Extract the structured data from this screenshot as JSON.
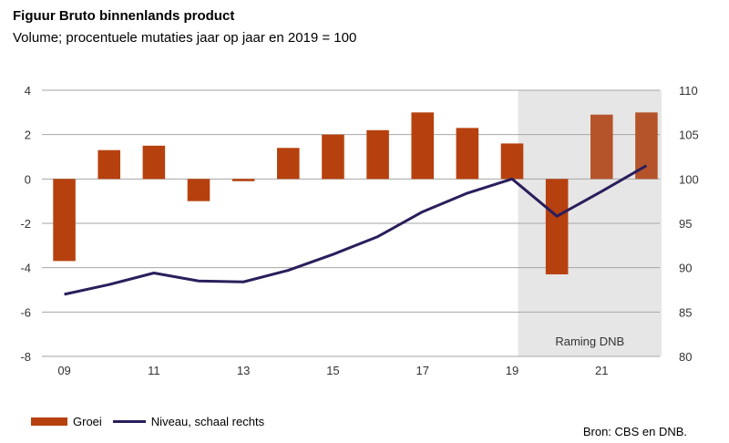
{
  "title": "Figuur Bruto binnenlands product",
  "subtitle": "Volume; procentuele mutaties jaar op jaar en 2019 = 100",
  "source": "Bron: CBS en DNB.",
  "colors": {
    "bar": "#B7410E",
    "bar_forecast": "#B5542A",
    "line": "#2B1E5C",
    "shade": "#E6E6E6",
    "grid": "#A6A6A6"
  },
  "chart_data": {
    "type": "bar+line",
    "x": [
      "09",
      "10",
      "11",
      "12",
      "13",
      "14",
      "15",
      "16",
      "17",
      "18",
      "19",
      "20",
      "21",
      "22"
    ],
    "x_tick_labels": [
      "09",
      "11",
      "13",
      "15",
      "17",
      "19",
      "21"
    ],
    "series": [
      {
        "name": "Groei",
        "type": "bar",
        "axis": "left",
        "values": [
          -3.7,
          1.3,
          1.5,
          -1.0,
          -0.1,
          1.4,
          2.0,
          2.2,
          3.0,
          2.3,
          1.6,
          -4.3,
          2.9,
          3.0
        ]
      },
      {
        "name": "Niveau, schaal rechts",
        "type": "line",
        "axis": "right",
        "values": [
          87.0,
          88.1,
          89.4,
          88.5,
          88.4,
          89.7,
          91.5,
          93.5,
          96.3,
          98.4,
          100.0,
          95.8,
          98.6,
          101.5
        ]
      }
    ],
    "y_left": {
      "min": -8,
      "max": 4,
      "ticks": [
        "4",
        "2",
        "0",
        "-2",
        "-4",
        "-6",
        "-8"
      ]
    },
    "y_right": {
      "min": 80,
      "max": 110,
      "ticks": [
        "110",
        "105",
        "100",
        "95",
        "90",
        "85",
        "80"
      ]
    },
    "forecast": {
      "label": "Raming DNB",
      "from_index": 11,
      "to_index": 13
    },
    "grid": true,
    "legend_position": "bottom-left"
  }
}
